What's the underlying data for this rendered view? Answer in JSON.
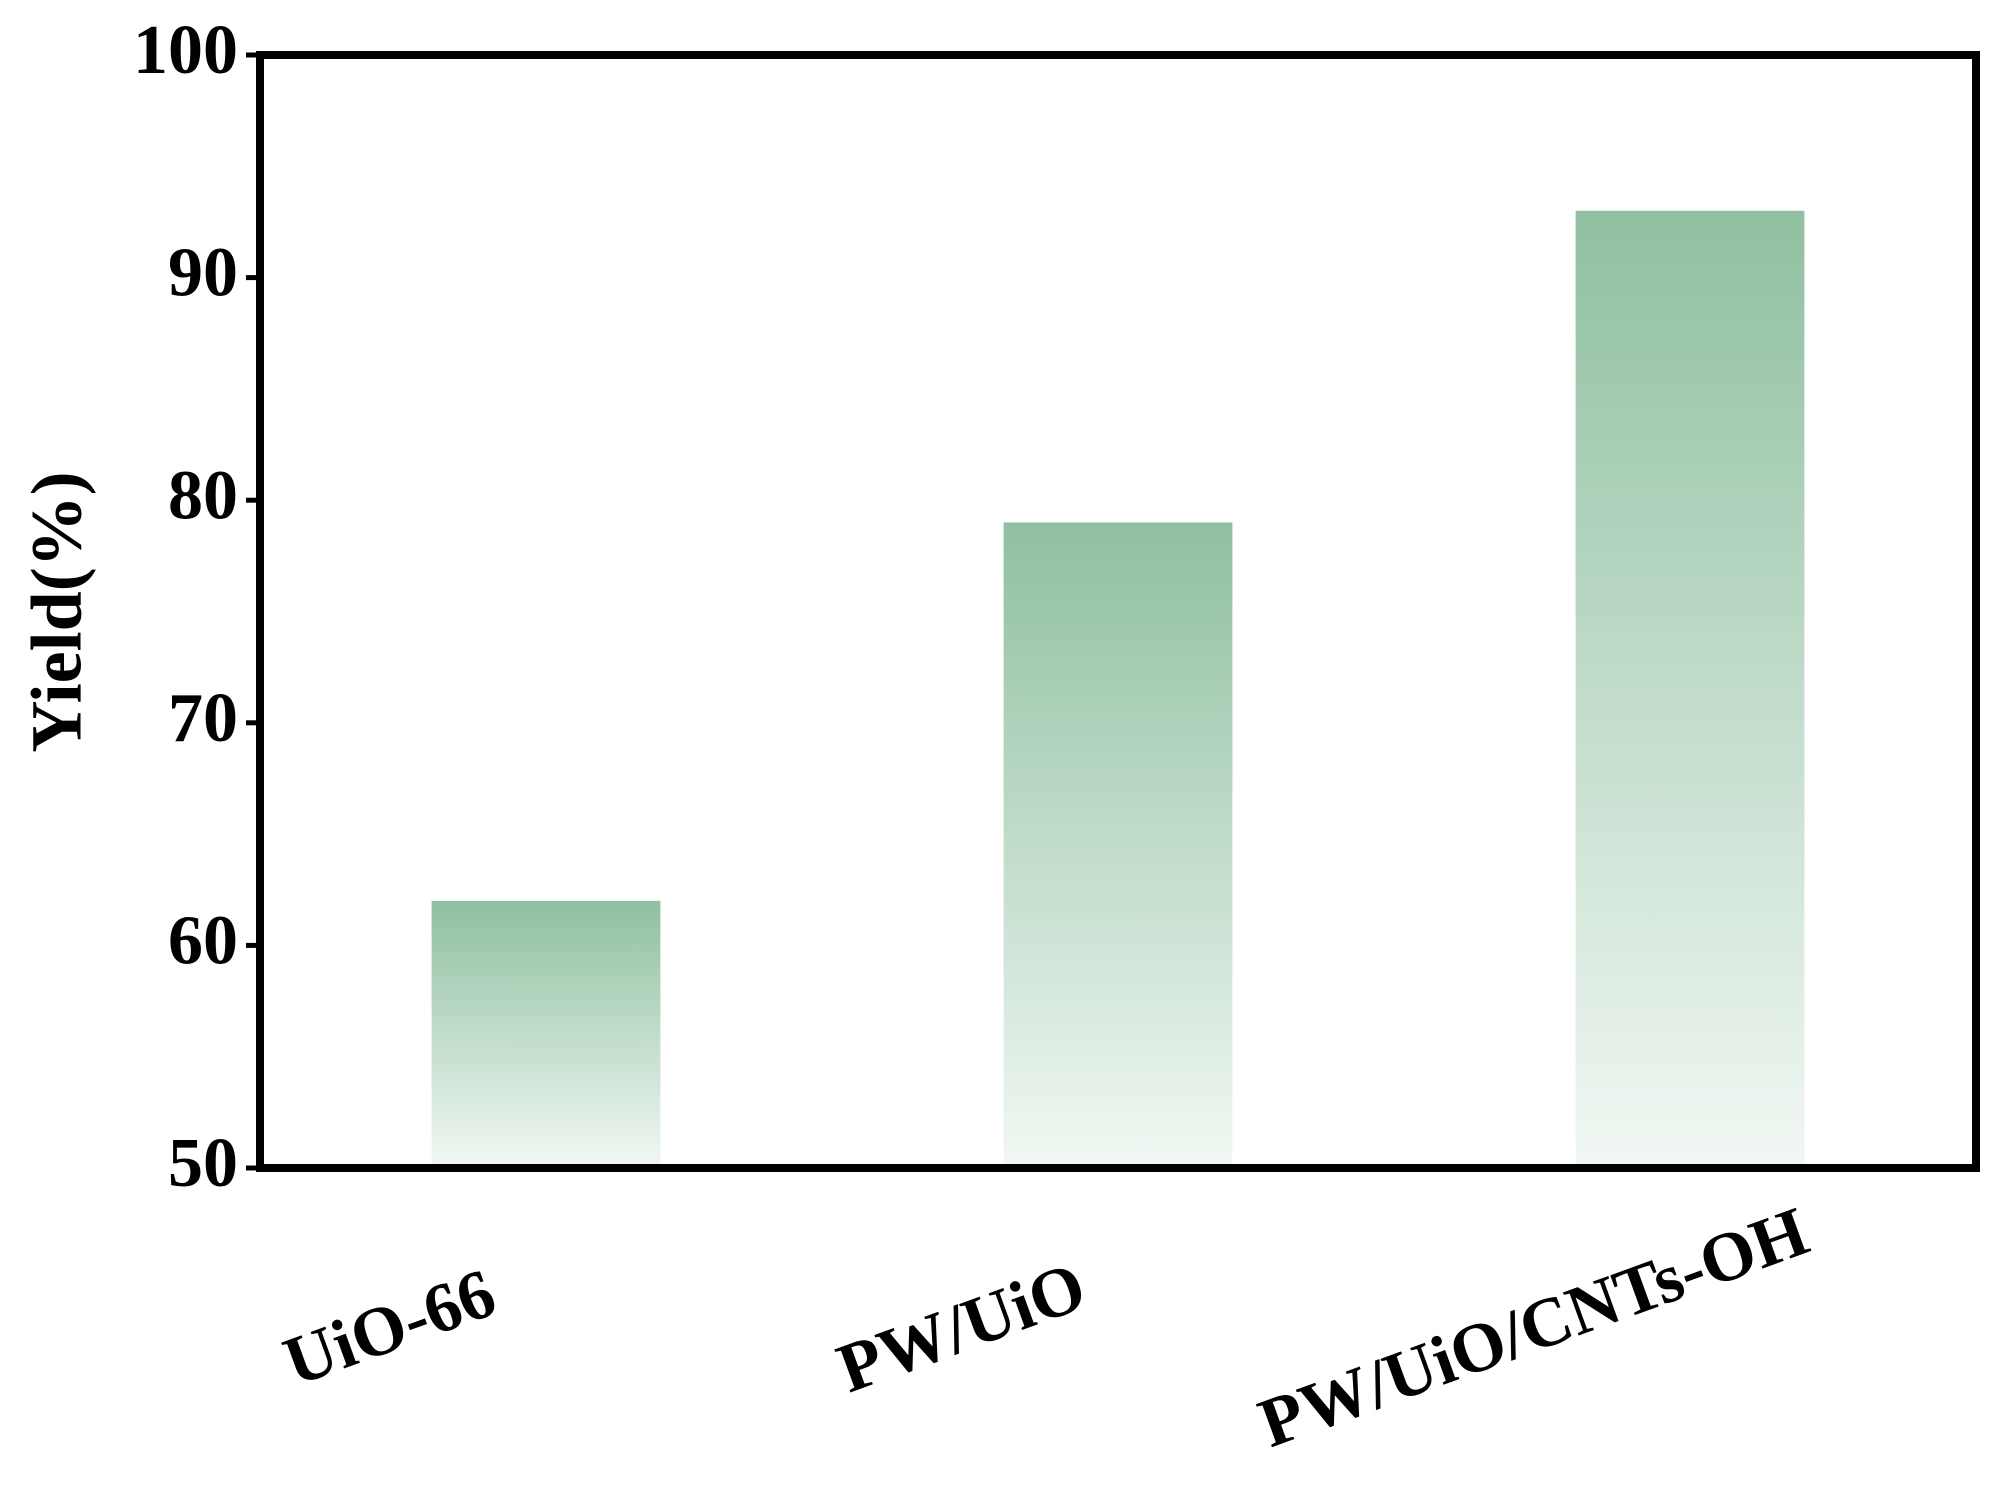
{
  "chart_data": {
    "type": "bar",
    "y_label": "Yield(%)",
    "categories": [
      "UiO-66",
      "PW/UiO",
      "PW/UiO/CNTs-OH"
    ],
    "values": [
      62,
      79,
      93
    ],
    "color": "#8fc0a0",
    "ylim": [
      50,
      100
    ],
    "yticks": [
      50,
      60,
      70,
      80,
      90,
      100
    ]
  }
}
